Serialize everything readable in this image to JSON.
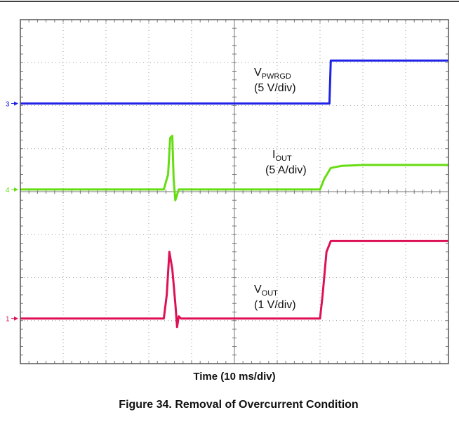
{
  "chart_data": {
    "type": "line",
    "title": "",
    "xlabel": "Time (10 ms/div)",
    "caption": "Figure 34. Removal of Overcurrent Condition",
    "grid": true,
    "x_divisions": 10,
    "y_divisions": 8,
    "xlim": [
      0,
      10
    ],
    "ylim": [
      0,
      8
    ],
    "series": [
      {
        "label_main": "V",
        "label_sub": "PWRGD",
        "label_scale": "(5 V/div)",
        "marker": "3",
        "color": "#1f22e6",
        "x": [
          0,
          7.22,
          7.25,
          10
        ],
        "y": [
          6.05,
          6.05,
          7.05,
          7.05
        ]
      },
      {
        "label_main": "I",
        "label_sub": "OUT",
        "label_scale": "(5 A/div)",
        "marker": "4",
        "color": "#66dd11",
        "x": [
          0,
          3.35,
          3.45,
          3.5,
          3.55,
          3.58,
          3.62,
          3.7,
          3.75,
          7.0,
          7.1,
          7.25,
          7.5,
          8.0,
          10
        ],
        "y": [
          4.05,
          4.05,
          4.4,
          5.25,
          5.3,
          4.3,
          3.8,
          4.05,
          4.05,
          4.05,
          4.3,
          4.55,
          4.6,
          4.62,
          4.62
        ]
      },
      {
        "label_main": "V",
        "label_sub": "OUT",
        "label_scale": "(1 V/div)",
        "marker": "1",
        "color": "#dd1155",
        "x": [
          0,
          3.35,
          3.42,
          3.48,
          3.55,
          3.62,
          3.66,
          3.7,
          3.75,
          7.0,
          7.06,
          7.15,
          7.25,
          10
        ],
        "y": [
          1.05,
          1.05,
          1.6,
          2.6,
          2.2,
          1.4,
          0.85,
          1.1,
          1.05,
          1.05,
          1.6,
          2.6,
          2.85,
          2.85
        ]
      }
    ]
  }
}
